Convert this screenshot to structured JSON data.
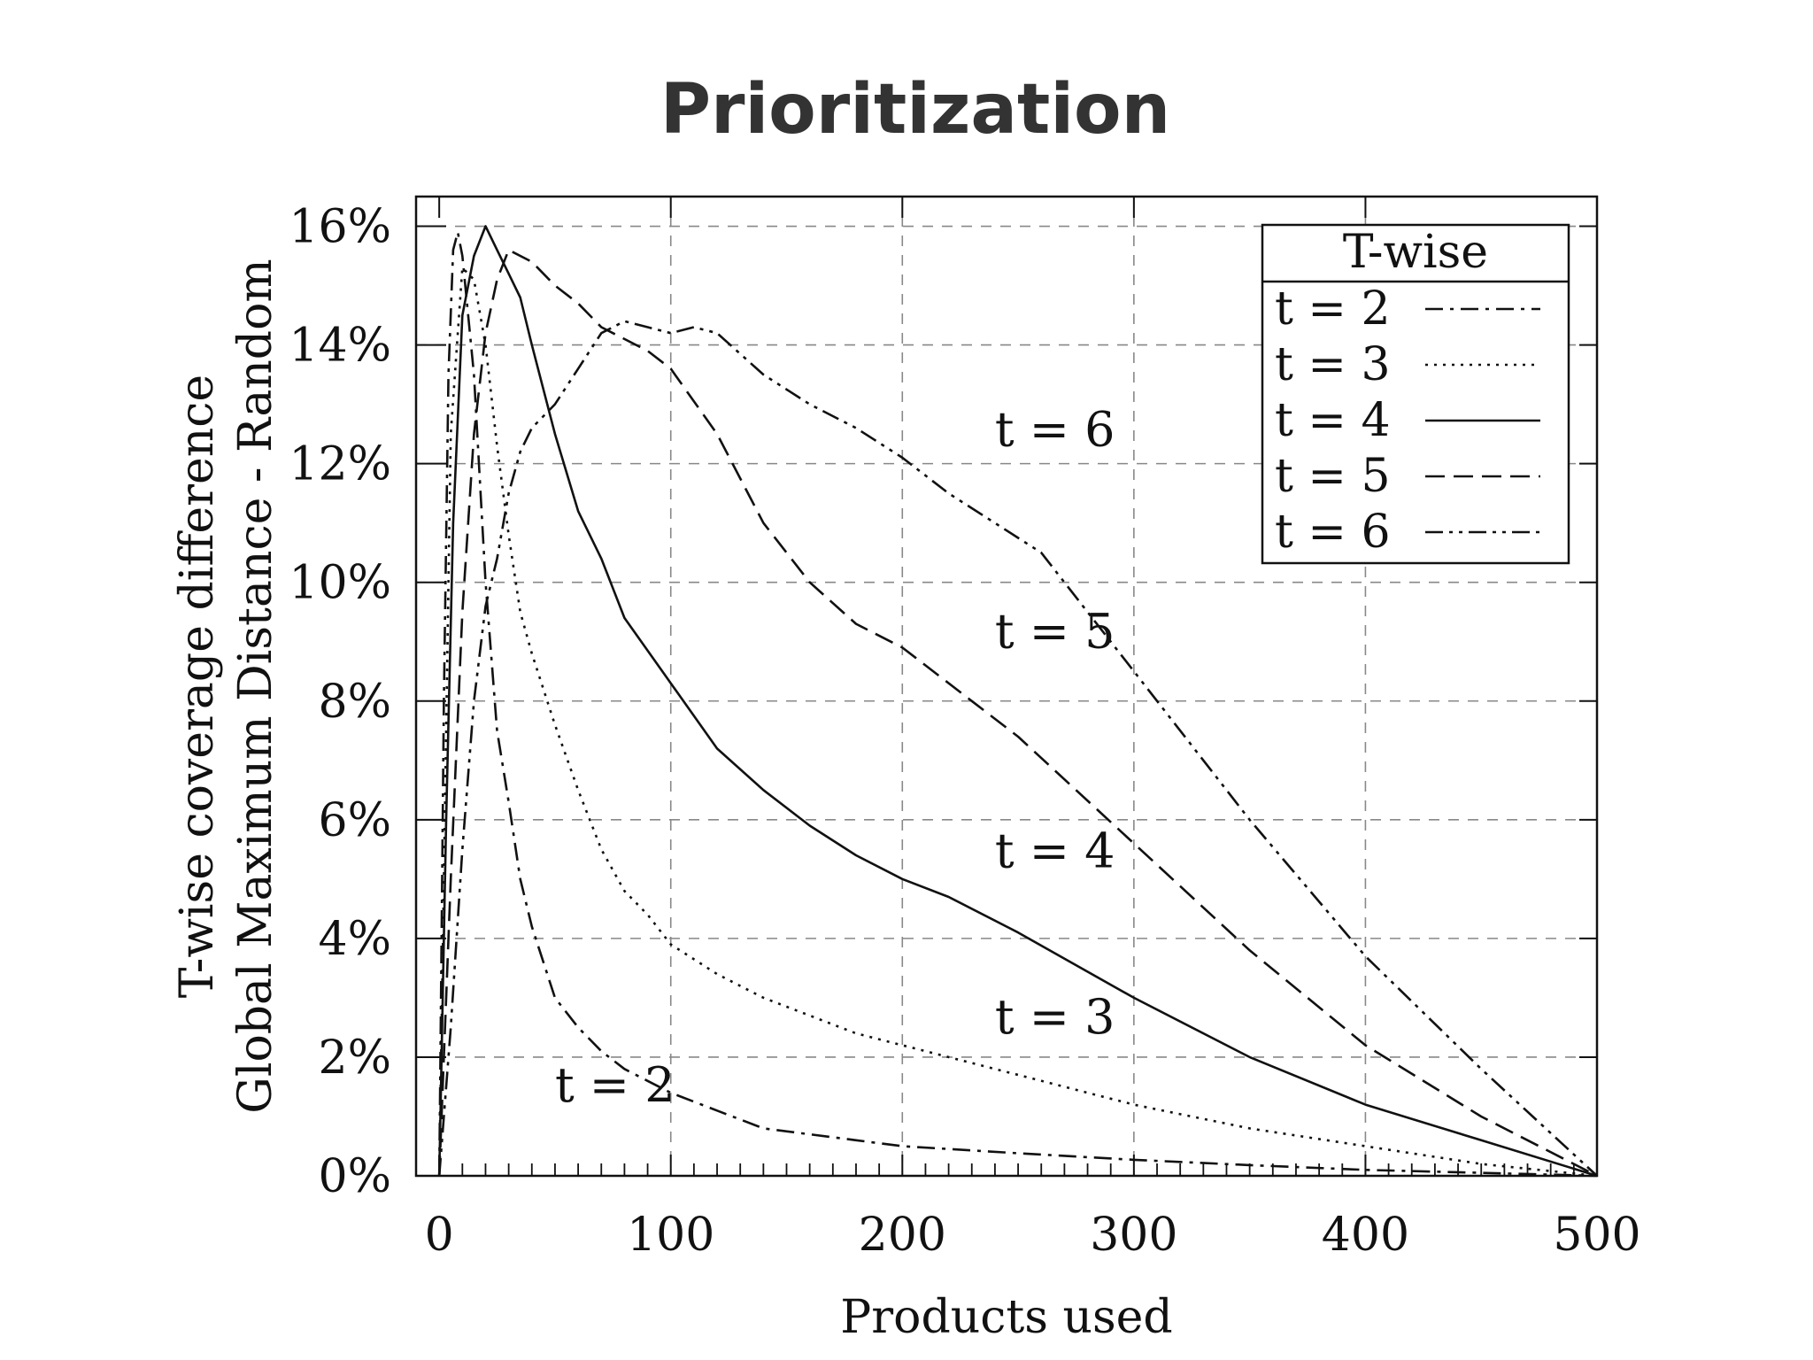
{
  "chart_data": {
    "type": "line",
    "title": "Prioritization",
    "xlabel": "Products used",
    "ylabel": [
      "T-wise coverage difference",
      "Global Maximum Distance - Random"
    ],
    "xlim": [
      -10,
      500
    ],
    "ylim": [
      0,
      16.5
    ],
    "xticks": [
      0,
      100,
      200,
      300,
      400,
      500
    ],
    "yticks": [
      0,
      2,
      4,
      6,
      8,
      10,
      12,
      14,
      16
    ],
    "xtick_labels": [
      "0",
      "100",
      "200",
      "300",
      "400",
      "500"
    ],
    "ytick_labels": [
      "0%",
      "2%",
      "4%",
      "6%",
      "8%",
      "10%",
      "12%",
      "14%",
      "16%"
    ],
    "grid": true,
    "legend": {
      "title": "T-wise",
      "position": "top-right",
      "entries": [
        "t = 2",
        "t = 3",
        "t = 4",
        "t = 5",
        "t = 6"
      ]
    },
    "series": [
      {
        "name": "t = 2",
        "dash": "dashdot",
        "x": [
          0,
          2,
          4,
          6,
          8,
          10,
          15,
          20,
          25,
          30,
          35,
          40,
          50,
          60,
          70,
          80,
          90,
          100,
          120,
          140,
          160,
          180,
          200,
          250,
          300,
          350,
          400,
          450,
          500
        ],
        "y": [
          0,
          8.0,
          13.5,
          15.6,
          15.9,
          15.5,
          13.5,
          10.0,
          7.5,
          6.3,
          5.0,
          4.2,
          3.0,
          2.5,
          2.1,
          1.8,
          1.6,
          1.4,
          1.1,
          0.8,
          0.7,
          0.6,
          0.5,
          0.38,
          0.27,
          0.18,
          0.1,
          0.05,
          0
        ]
      },
      {
        "name": "t = 3",
        "dash": "dotted",
        "x": [
          0,
          2,
          5,
          10,
          15,
          20,
          25,
          30,
          35,
          40,
          50,
          60,
          70,
          80,
          90,
          100,
          120,
          140,
          160,
          180,
          200,
          230,
          250,
          300,
          350,
          400,
          450,
          500
        ],
        "y": [
          0,
          5.0,
          12.5,
          15.3,
          15.1,
          14.0,
          12.3,
          10.8,
          9.5,
          8.8,
          7.6,
          6.5,
          5.5,
          4.8,
          4.4,
          3.9,
          3.4,
          3.0,
          2.7,
          2.4,
          2.2,
          1.9,
          1.7,
          1.2,
          0.8,
          0.5,
          0.2,
          0
        ]
      },
      {
        "name": "t = 4",
        "dash": "solid",
        "x": [
          0,
          3,
          6,
          10,
          15,
          20,
          25,
          30,
          35,
          40,
          50,
          60,
          70,
          80,
          100,
          120,
          140,
          160,
          180,
          200,
          220,
          250,
          300,
          350,
          400,
          450,
          500
        ],
        "y": [
          0,
          6.0,
          11.0,
          14.5,
          15.5,
          16.0,
          15.6,
          15.2,
          14.8,
          14.0,
          12.5,
          11.2,
          10.4,
          9.4,
          8.3,
          7.2,
          6.5,
          5.9,
          5.4,
          5.0,
          4.7,
          4.1,
          3.0,
          2.0,
          1.2,
          0.6,
          0
        ]
      },
      {
        "name": "t = 5",
        "dash": "dashed",
        "x": [
          0,
          5,
          10,
          15,
          20,
          25,
          30,
          40,
          50,
          60,
          70,
          80,
          90,
          100,
          120,
          140,
          160,
          180,
          200,
          210,
          230,
          250,
          275,
          300,
          350,
          400,
          450,
          500
        ],
        "y": [
          0,
          5.0,
          9.5,
          12.5,
          14.2,
          15.1,
          15.6,
          15.4,
          15.0,
          14.7,
          14.3,
          14.1,
          13.9,
          13.6,
          12.5,
          11.0,
          10.0,
          9.3,
          8.9,
          8.6,
          8.0,
          7.4,
          6.5,
          5.6,
          3.8,
          2.2,
          1.0,
          0
        ]
      },
      {
        "name": "t = 6",
        "dash": "dashdotdot",
        "x": [
          0,
          5,
          10,
          15,
          20,
          25,
          30,
          35,
          40,
          50,
          60,
          70,
          80,
          90,
          100,
          110,
          120,
          140,
          160,
          180,
          200,
          220,
          240,
          260,
          280,
          300,
          350,
          400,
          450,
          500
        ],
        "y": [
          0,
          2.5,
          5.5,
          8.0,
          9.6,
          10.4,
          11.5,
          12.2,
          12.6,
          13.0,
          13.6,
          14.2,
          14.4,
          14.3,
          14.2,
          14.3,
          14.2,
          13.5,
          13.0,
          12.6,
          12.1,
          11.5,
          11.0,
          10.5,
          9.5,
          8.5,
          6.0,
          3.7,
          1.8,
          0
        ]
      }
    ],
    "annotations": [
      {
        "text": "t = 6",
        "x": 240,
        "y": 12.3
      },
      {
        "text": "t = 5",
        "x": 240,
        "y": 8.9
      },
      {
        "text": "t = 4",
        "x": 240,
        "y": 5.2
      },
      {
        "text": "t = 3",
        "x": 240,
        "y": 2.4
      },
      {
        "text": "t = 2",
        "x": 50,
        "y": 1.25
      }
    ]
  }
}
